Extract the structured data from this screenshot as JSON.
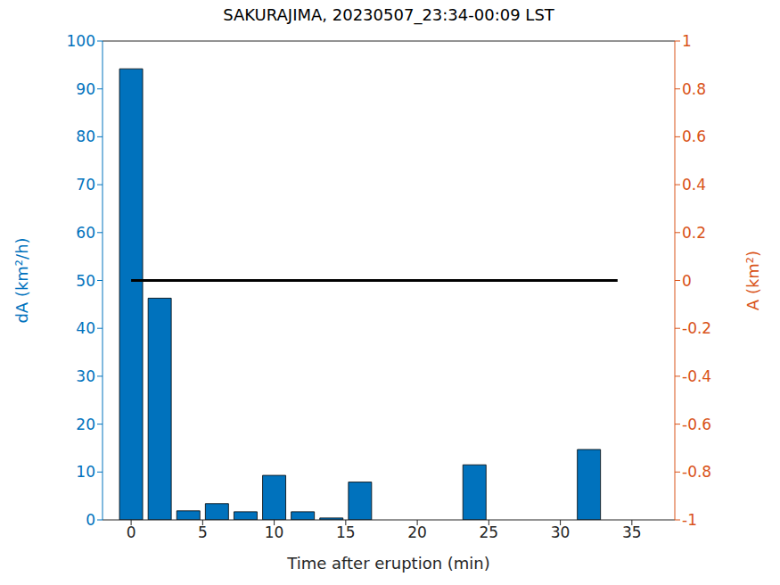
{
  "chart_data": {
    "type": "bar",
    "title": "SAKURAJIMA, 20230507_23:34-00:09 LST",
    "x_label": "Time after eruption (min)",
    "y_label": "dA (km²/h)",
    "y2_label": "A (km²)",
    "x": [
      0,
      2,
      4,
      6,
      8,
      10,
      12,
      14,
      16,
      18,
      20,
      22,
      24,
      26,
      28,
      30,
      32,
      34
    ],
    "series": [
      {
        "name": "dA",
        "type": "bar",
        "color": "#0072BD",
        "values": [
          94.2,
          46.3,
          1.9,
          3.4,
          1.7,
          9.3,
          1.7,
          0.4,
          7.9,
          0,
          0,
          0,
          11.5,
          0,
          0,
          0,
          14.7,
          null
        ]
      },
      {
        "name": "A",
        "type": "line",
        "axis": "y2",
        "color": "#000000",
        "values": [
          0,
          0,
          0,
          0,
          0,
          0,
          0,
          0,
          0,
          0,
          0,
          0,
          0,
          0,
          0,
          0,
          0,
          0
        ]
      }
    ],
    "xlim": [
      -2,
      38
    ],
    "xticks": [
      0,
      5,
      10,
      15,
      20,
      25,
      30,
      35
    ],
    "ylim": [
      0,
      100
    ],
    "yticks": [
      0,
      10,
      20,
      30,
      40,
      50,
      60,
      70,
      80,
      90,
      100
    ],
    "y2lim": [
      -1,
      1
    ],
    "y2ticks": [
      -1,
      -0.8,
      -0.6,
      -0.4,
      -0.2,
      0,
      0.2,
      0.4,
      0.6,
      0.8,
      1
    ]
  }
}
